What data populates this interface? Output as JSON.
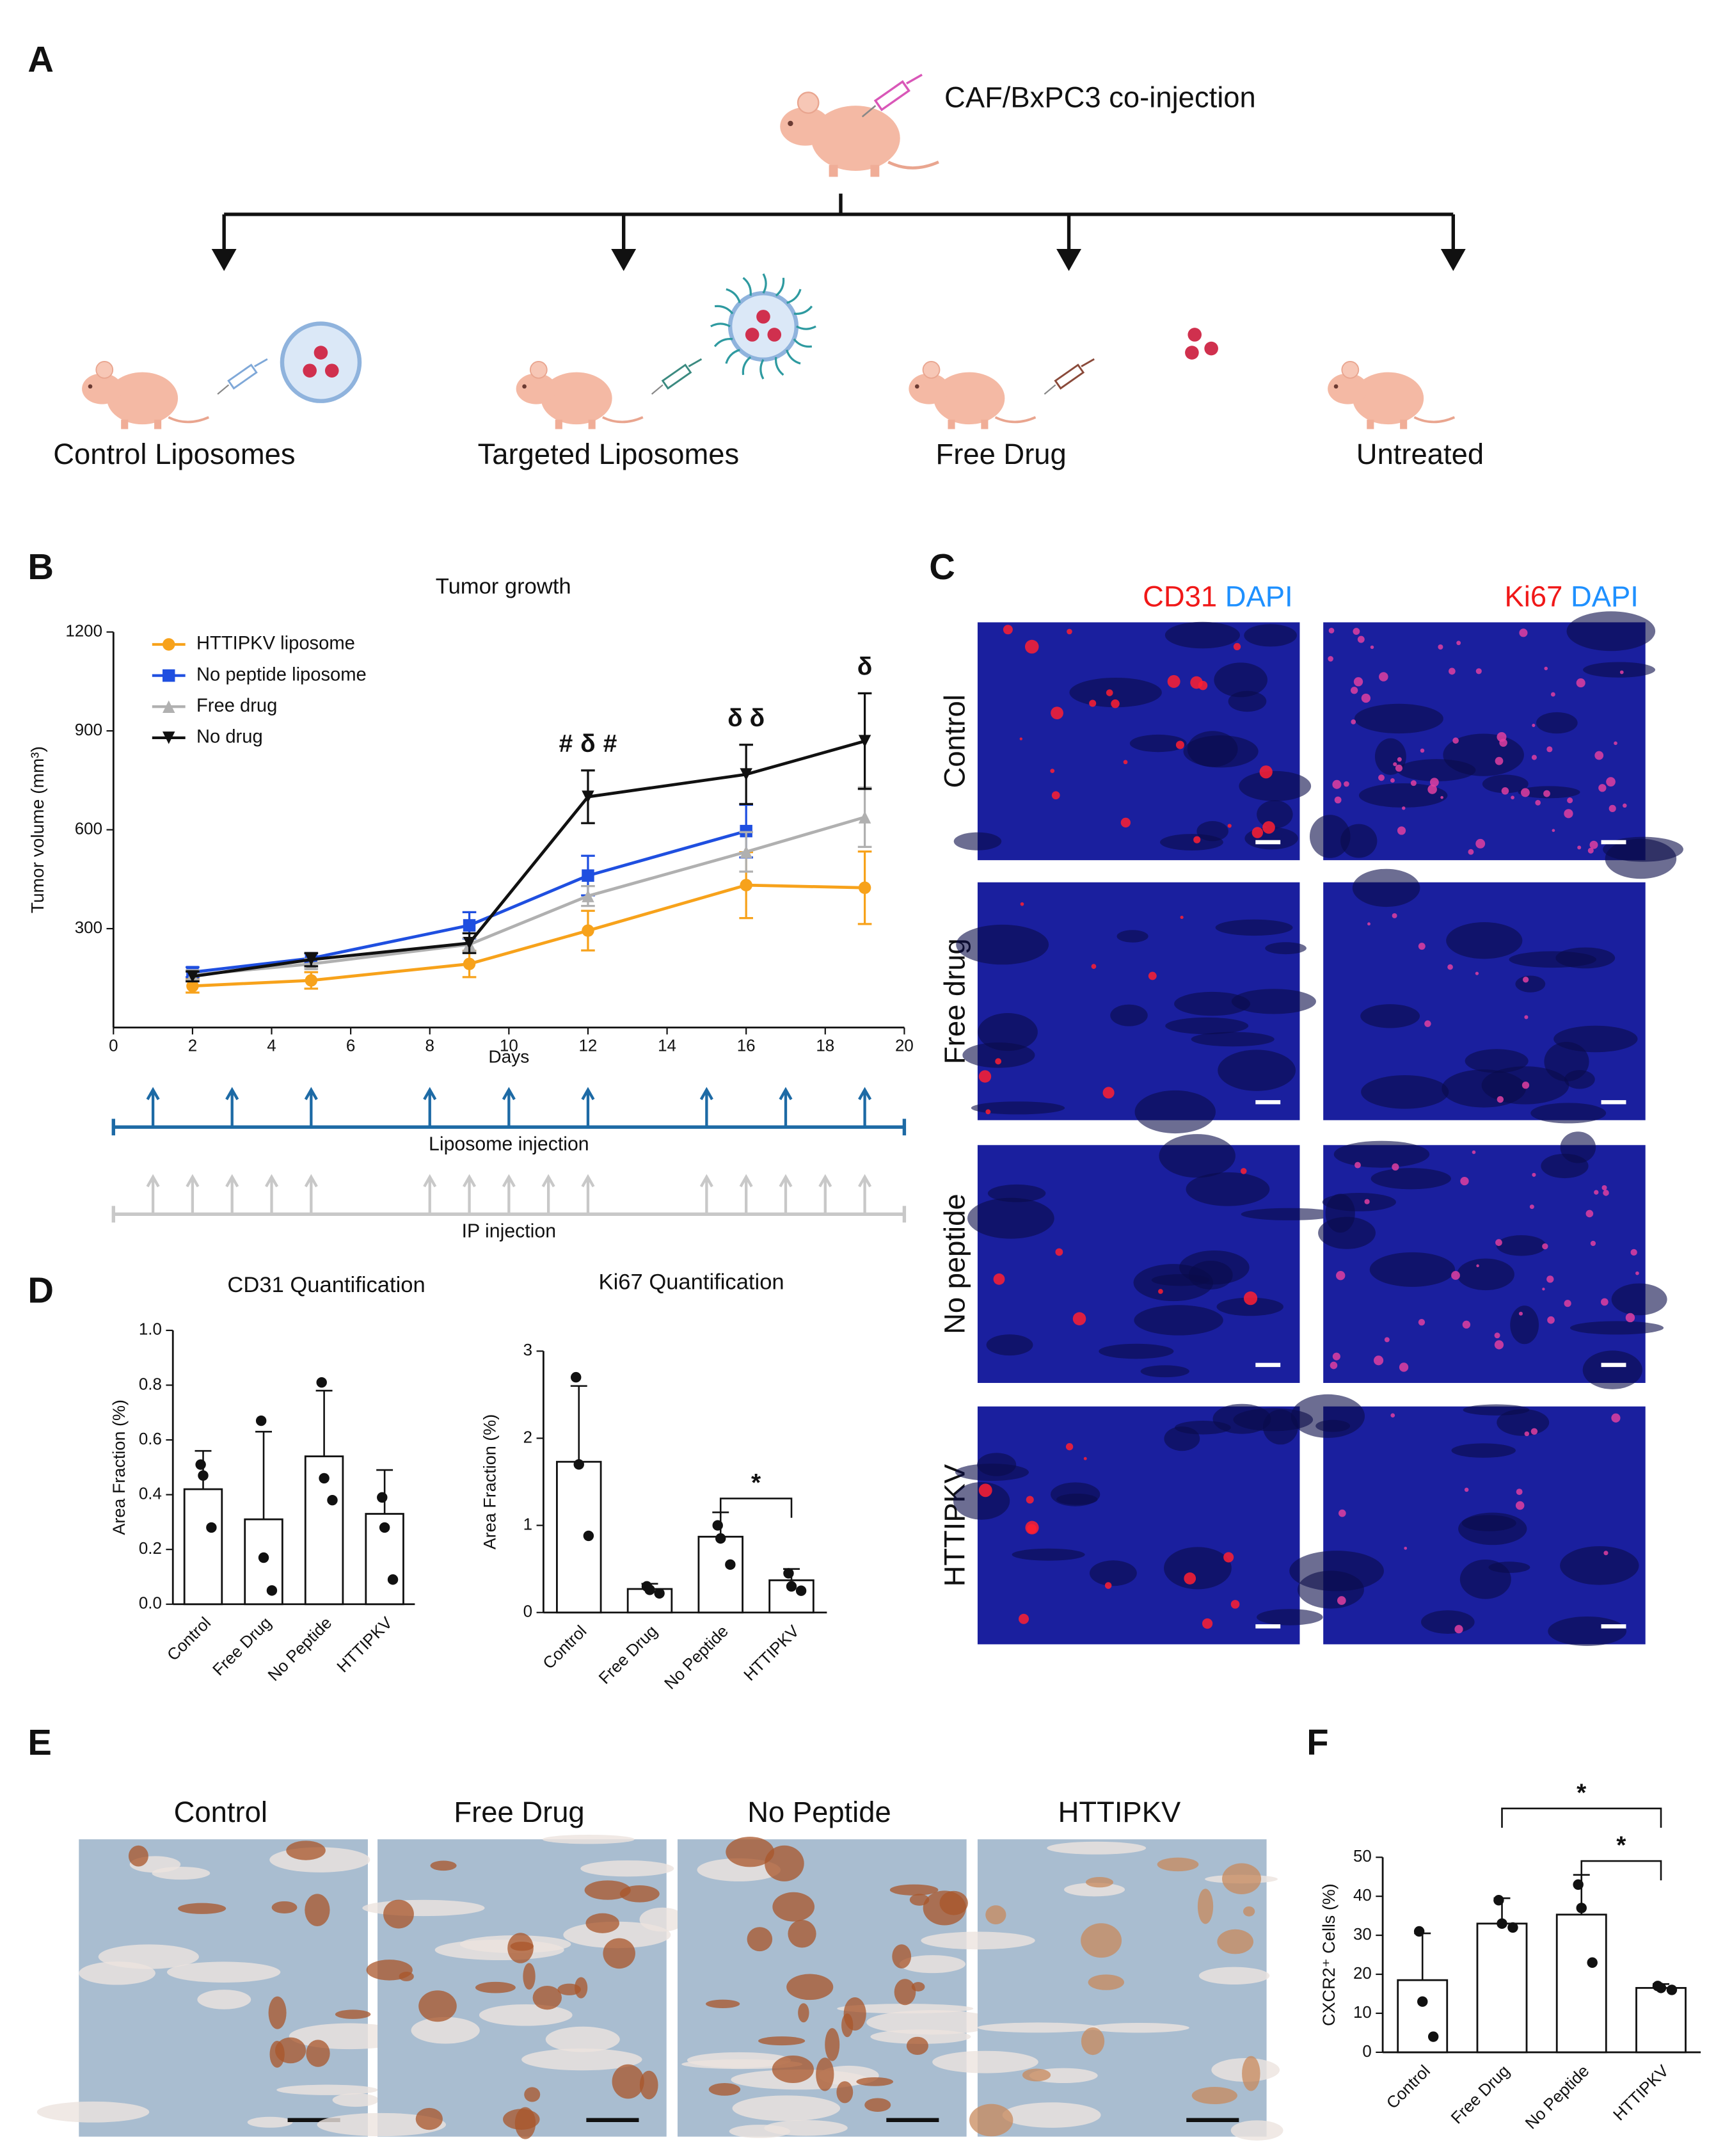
{
  "panel_labels": [
    "A",
    "B",
    "C",
    "D",
    "E",
    "F"
  ],
  "schematic": {
    "injection": "CAF/BxPC3 co-injection",
    "groups": [
      "Control Liposomes",
      "Targeted Liposomes",
      "Free Drug",
      "Untreated"
    ]
  },
  "chart_data": [
    {
      "type": "line",
      "title": "Tumor growth",
      "x_label": "Days",
      "y_label": "Tumor volume (mm³)",
      "x": [
        2,
        5,
        9,
        12,
        16,
        19
      ],
      "xlim": [
        0,
        20
      ],
      "xticks": [
        0,
        2,
        4,
        6,
        8,
        10,
        12,
        14,
        16,
        18,
        20
      ],
      "ylim": [
        0,
        1200
      ],
      "yticks": [
        300,
        600,
        900,
        1200
      ],
      "legend": "top-left",
      "series": [
        {
          "name": "HTTIPKV liposome",
          "color": "#f7a21b",
          "marker": "circle",
          "values": [
            126,
            143,
            193,
            294,
            432,
            424
          ],
          "errors": [
            20,
            25,
            40,
            60,
            100,
            110
          ]
        },
        {
          "name": "No peptide liposome",
          "color": "#1f4fe0",
          "marker": "square",
          "values": [
            168,
            210,
            310,
            461,
            596,
            null
          ],
          "errors": [
            15,
            15,
            40,
            60,
            80,
            null
          ]
        },
        {
          "name": "Free drug",
          "color": "#b0b0b0",
          "marker": "triangle-up",
          "values": [
            159,
            193,
            252,
            399,
            533,
            638
          ],
          "errors": [
            15,
            15,
            20,
            30,
            60,
            90
          ]
        },
        {
          "name": "No drug",
          "color": "#111111",
          "marker": "triangle-down",
          "values": [
            155,
            206,
            256,
            700,
            768,
            869
          ],
          "errors": [
            15,
            20,
            30,
            80,
            90,
            145
          ]
        }
      ],
      "annotations": [
        {
          "text": "#",
          "color": "#f7a21b",
          "x": 12
        },
        {
          "text": "δ",
          "color": "#1f4fe0",
          "x": 12
        },
        {
          "text": "#",
          "color": "#b0b0b0",
          "x": 12
        },
        {
          "text": "δ",
          "color": "#f7a21b",
          "x": 16
        },
        {
          "text": "δ",
          "color": "#b0b0b0",
          "x": 16
        },
        {
          "text": "δ",
          "color": "#f7a21b",
          "x": 19
        }
      ],
      "schedules": [
        {
          "label": "Liposome injection",
          "color": "#1d6aa5",
          "days": [
            1,
            3,
            5,
            8,
            10,
            12,
            15,
            17,
            19
          ]
        },
        {
          "label": "IP injection",
          "color": "#c8c8c8",
          "days": [
            1,
            2,
            3,
            4,
            5,
            8,
            9,
            10,
            11,
            12,
            15,
            16,
            17,
            18,
            19
          ]
        }
      ]
    },
    {
      "type": "bar",
      "title": "CD31 Quantification",
      "y_label": "Area Fraction (%)",
      "categories": [
        "Control",
        "Free Drug",
        "No Peptide",
        "HTTIPKV"
      ],
      "values": [
        0.42,
        0.31,
        0.54,
        0.33
      ],
      "errors": [
        0.14,
        0.32,
        0.24,
        0.16
      ],
      "points": [
        [
          0.51,
          0.47,
          0.28
        ],
        [
          0.67,
          0.17,
          0.05
        ],
        [
          0.81,
          0.46,
          0.38
        ],
        [
          0.39,
          0.28,
          0.09
        ]
      ],
      "ylim": [
        0,
        1
      ],
      "yticks": [
        {
          "value": 0,
          "label": "0.0"
        },
        0.2,
        0.4,
        0.6,
        0.8,
        {
          "value": 1,
          "label": "1.0"
        }
      ],
      "brackets": []
    },
    {
      "type": "bar",
      "title": "Ki67 Quantification",
      "y_label": "Area Fraction (%)",
      "categories": [
        "Control",
        "Free Drug",
        "No Peptide",
        "HTTIPKV"
      ],
      "values": [
        1.73,
        0.27,
        0.87,
        0.37
      ],
      "errors": [
        0.87,
        0.06,
        0.28,
        0.13
      ],
      "points": [
        [
          2.7,
          1.7,
          0.88
        ],
        [
          0.3,
          0.26,
          0.22
        ],
        [
          1.0,
          0.85,
          0.55
        ],
        [
          0.45,
          0.3,
          0.25
        ]
      ],
      "ylim": [
        0,
        3
      ],
      "yticks": [
        0,
        1,
        2,
        3
      ],
      "brackets": [
        {
          "between": [
            "No Peptide",
            "HTTIPKV"
          ],
          "label": "*"
        }
      ]
    },
    {
      "type": "bar",
      "y_label": "CXCR2⁺ Cells (%)",
      "categories": [
        "Control",
        "Free Drug",
        "No Peptide",
        "HTTIPKV"
      ],
      "values": [
        18.5,
        33,
        35.3,
        16.5
      ],
      "errors": [
        12,
        6.5,
        10.2,
        1
      ],
      "points": [
        [
          31,
          13,
          4
        ],
        [
          39,
          33,
          32
        ],
        [
          43,
          37,
          23
        ],
        [
          17,
          16.5,
          16
        ]
      ],
      "ylim": [
        0,
        50
      ],
      "yticks": [
        0,
        10,
        20,
        30,
        40,
        50
      ],
      "brackets": [
        {
          "between": [
            "No Peptide",
            "HTTIPKV"
          ],
          "label": "*"
        },
        {
          "between": [
            "Free Drug",
            "HTTIPKV"
          ],
          "label": "*"
        }
      ]
    }
  ],
  "microscopy": {
    "marker_color": "#f01818",
    "counterstain_color": "#1e90ff",
    "columns": [
      {
        "marker": "CD31",
        "counterstain": "DAPI"
      },
      {
        "marker": "Ki67",
        "counterstain": "DAPI"
      }
    ],
    "rows": [
      "Control",
      "Free drug",
      "No peptide",
      "HTTIPKV"
    ]
  },
  "ihc": {
    "columns": [
      "Control",
      "Free Drug",
      "No Peptide",
      "HTTIPKV"
    ]
  }
}
